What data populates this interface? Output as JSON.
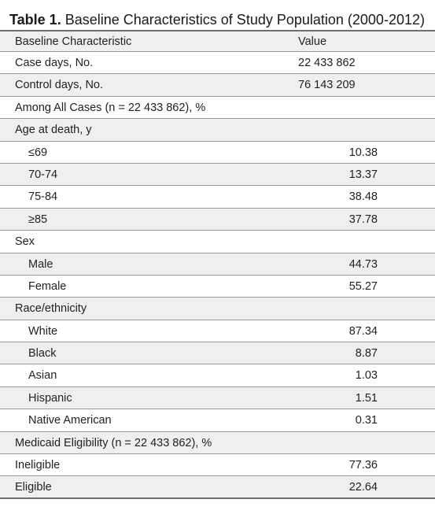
{
  "table": {
    "caption_number": "Table 1.",
    "caption_text": "Baseline Characteristics of Study Population (2000-2012)",
    "header": {
      "characteristic": "Baseline Characteristic",
      "value": "Value"
    },
    "rows": [
      {
        "label": "Case days, No.",
        "value": "22 433 862"
      },
      {
        "label": "Control days, No.",
        "value": "76 143 209"
      },
      {
        "label": "Among All Cases (n = 22 433 862), %",
        "value": ""
      },
      {
        "label": "Age at death, y",
        "value": ""
      },
      {
        "label": "≤69",
        "value": "10.38"
      },
      {
        "label": "70-74",
        "value": "13.37"
      },
      {
        "label": "75-84",
        "value": "38.48"
      },
      {
        "label": "≥85",
        "value": "37.78"
      },
      {
        "label": "Sex",
        "value": ""
      },
      {
        "label": "Male",
        "value": "44.73"
      },
      {
        "label": "Female",
        "value": "55.27"
      },
      {
        "label": "Race/ethnicity",
        "value": ""
      },
      {
        "label": "White",
        "value": "87.34"
      },
      {
        "label": "Black",
        "value": "8.87"
      },
      {
        "label": "Asian",
        "value": "1.03"
      },
      {
        "label": "Hispanic",
        "value": "1.51"
      },
      {
        "label": "Native American",
        "value": "0.31"
      },
      {
        "label": "Medicaid Eligibility (n = 22 433 862), %",
        "value": ""
      },
      {
        "label": "Ineligible",
        "value": "77.36"
      },
      {
        "label": "Eligible",
        "value": "22.64"
      }
    ]
  },
  "colors": {
    "shaded_row": "#efefef",
    "rule": "#6e6e6e",
    "divider": "#9a9a9a",
    "text": "#222222"
  }
}
